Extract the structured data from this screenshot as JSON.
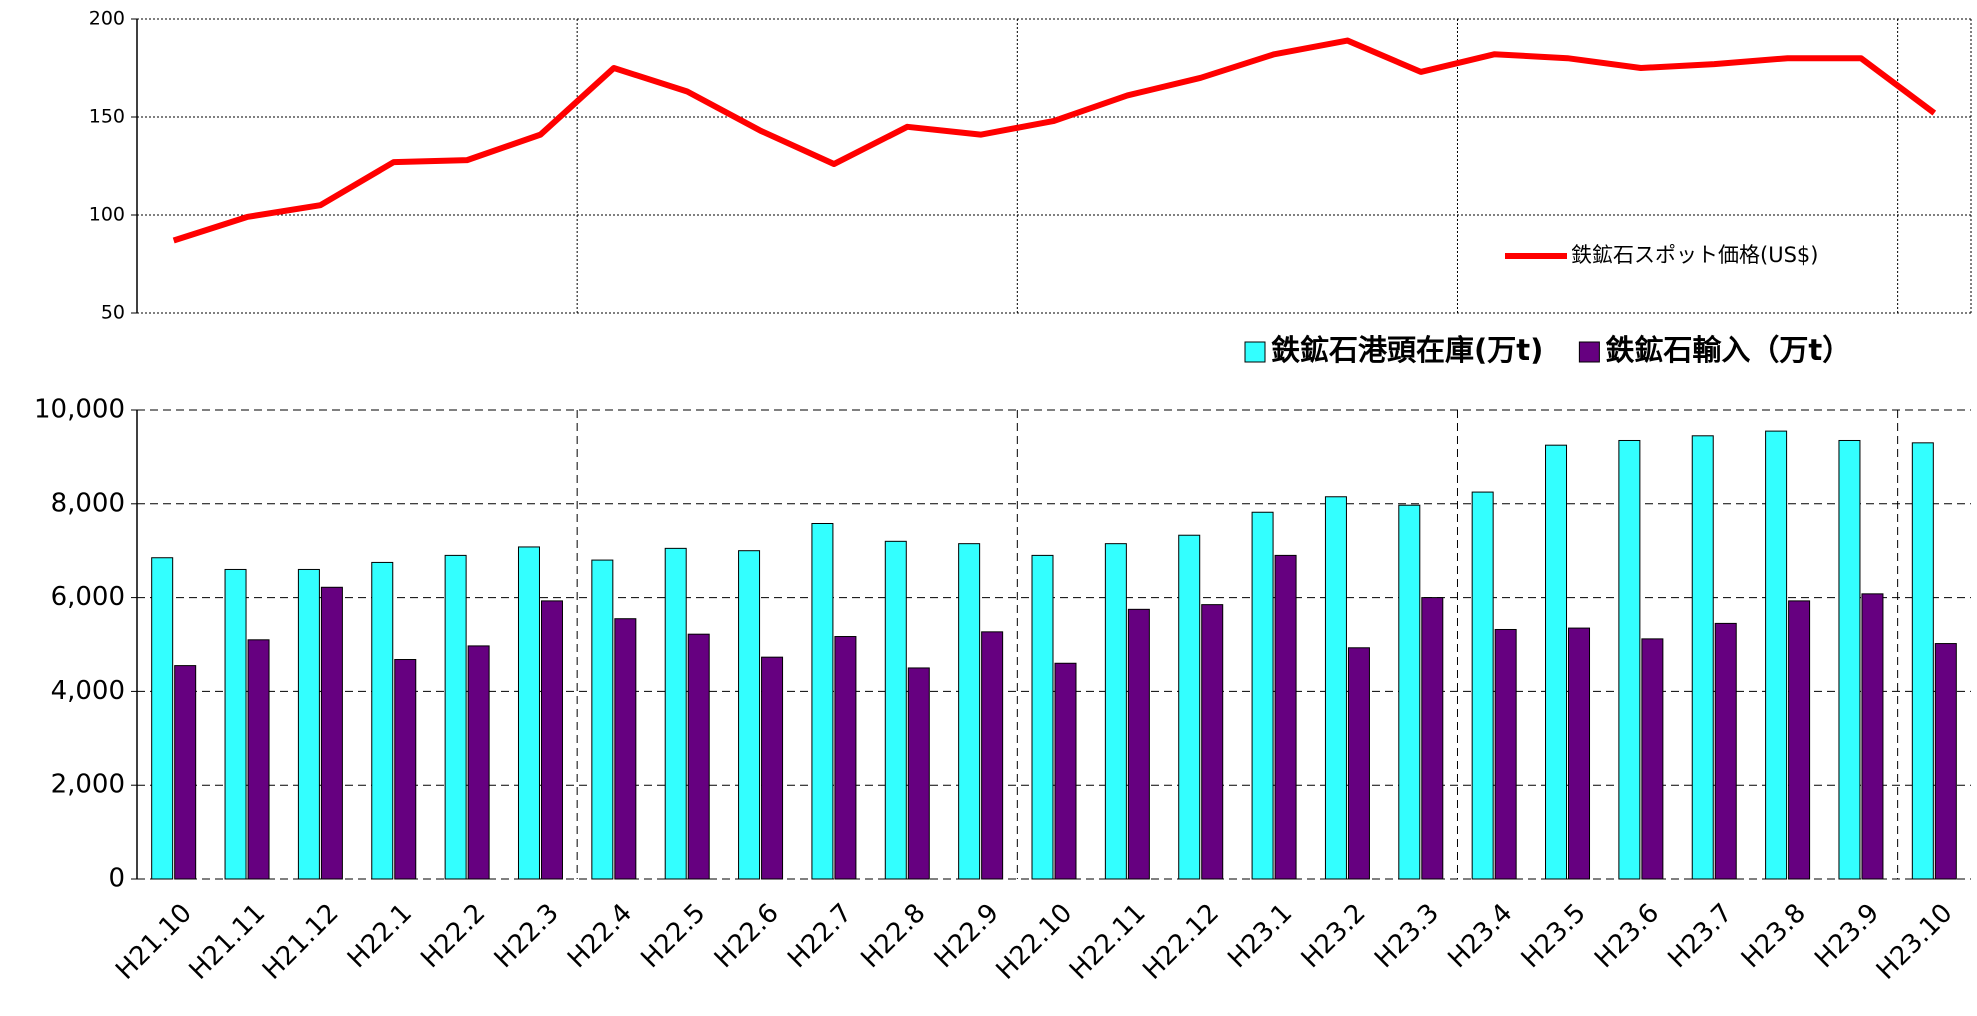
{
  "chart_data": [
    {
      "type": "line",
      "series": [
        {
          "name": "鉄鉱石スポット価格(US$)",
          "color": "#ff0000",
          "values": [
            87,
            99,
            105,
            127,
            128,
            141,
            175,
            163,
            143,
            126,
            145,
            141,
            148,
            161,
            170,
            182,
            189,
            173,
            182,
            180,
            175,
            177,
            180,
            180,
            152
          ]
        }
      ],
      "ylim": [
        50,
        200
      ],
      "yticks": [
        50,
        100,
        150,
        200
      ],
      "grid": true,
      "legend": "lower right"
    },
    {
      "type": "bar",
      "categories": [
        "H21.10",
        "H21.11",
        "H21.12",
        "H22.1",
        "H22.2",
        "H22.3",
        "H22.4",
        "H22.5",
        "H22.6",
        "H22.7",
        "H22.8",
        "H22.9",
        "H22.10",
        "H22.11",
        "H22.12",
        "H23.1",
        "H23.2",
        "H23.3",
        "H23.4",
        "H23.5",
        "H23.6",
        "H23.7",
        "H23.8",
        "H23.9",
        "H23.10"
      ],
      "series": [
        {
          "name": "鉄鉱石港頭在庫(万t)",
          "color": "#33ffff",
          "values": [
            6850,
            6600,
            6600,
            6750,
            6900,
            7080,
            6800,
            7050,
            7000,
            7580,
            7200,
            7150,
            6900,
            7150,
            7330,
            7820,
            8150,
            7970,
            8250,
            9250,
            9350,
            9450,
            9550,
            9350,
            9300
          ]
        },
        {
          "name": "鉄鉱石輸入（万t）",
          "color": "#660080",
          "values": [
            4550,
            5100,
            6220,
            4680,
            4970,
            5930,
            5550,
            5220,
            4730,
            5170,
            4500,
            5270,
            4600,
            5750,
            5850,
            6900,
            4930,
            6000,
            5320,
            5350,
            5120,
            5450,
            5930,
            6080,
            5020
          ]
        }
      ],
      "ylim": [
        0,
        10000
      ],
      "yticks": [
        0,
        {
          "value": 2000,
          "label": "2,000"
        },
        {
          "value": 4000,
          "label": "4,000"
        },
        {
          "value": 6000,
          "label": "6,000"
        },
        {
          "value": 8000,
          "label": "8,000"
        },
        {
          "value": 10000,
          "label": "10,000"
        }
      ],
      "grid": true,
      "legend": "upper right"
    }
  ]
}
